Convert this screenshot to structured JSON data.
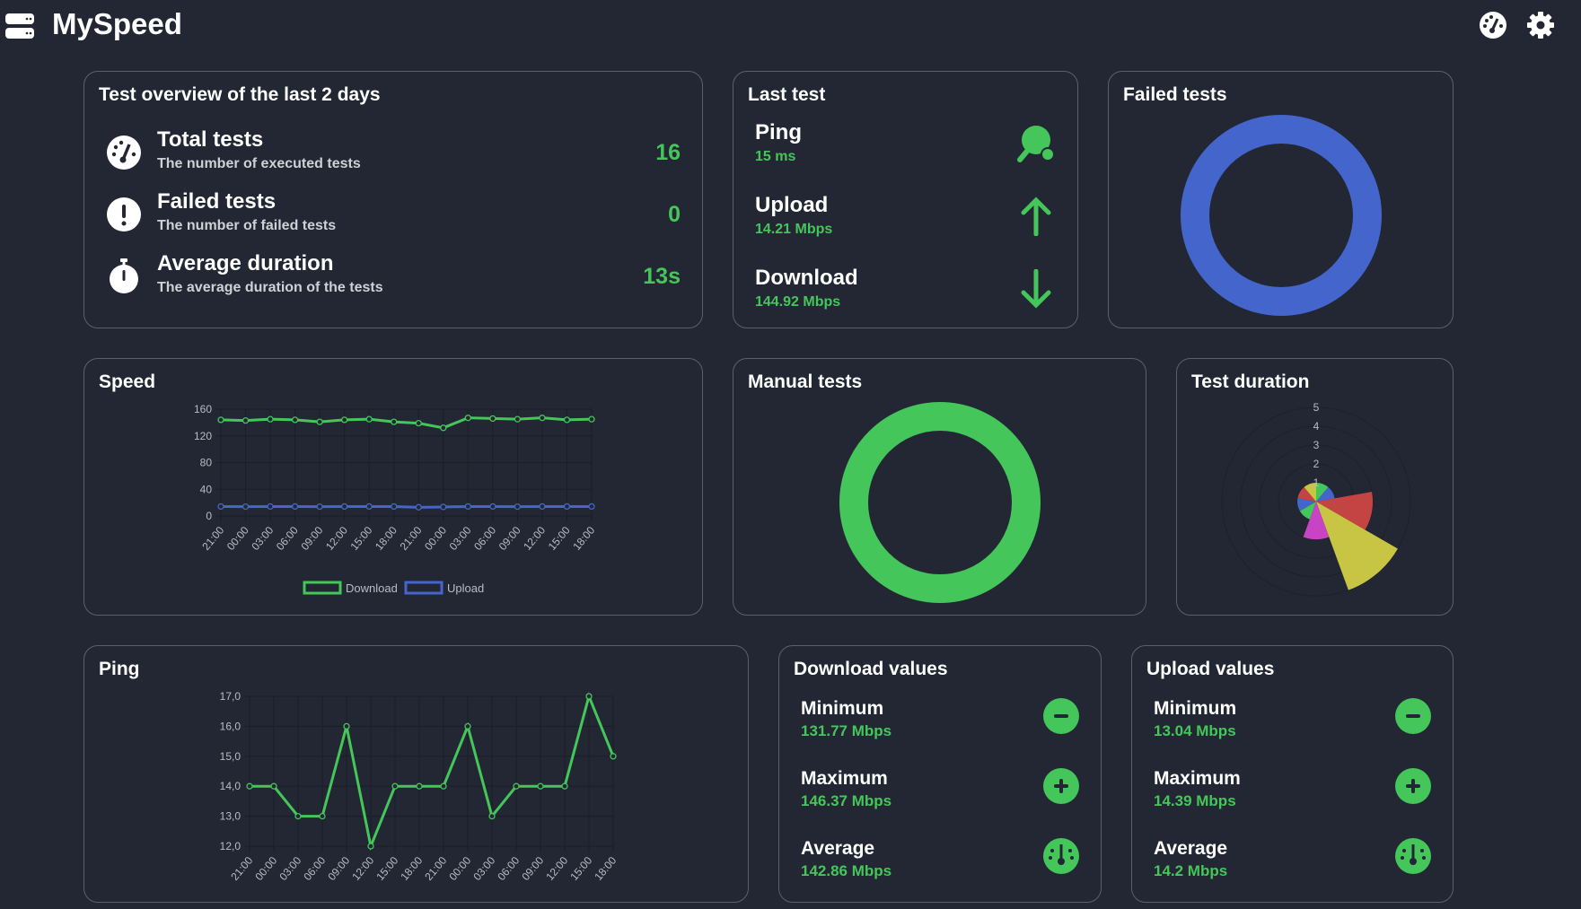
{
  "app": {
    "title": "MySpeed",
    "icons": [
      "server-icon",
      "gauge-icon",
      "gear-icon"
    ]
  },
  "overview": {
    "title": "Test overview of the last 2 days",
    "rows": [
      {
        "title": "Total tests",
        "subtitle": "The number of executed tests",
        "value": "16",
        "icon": "gauge-icon"
      },
      {
        "title": "Failed tests",
        "subtitle": "The number of failed tests",
        "value": "0",
        "icon": "exclamation-icon"
      },
      {
        "title": "Average duration",
        "subtitle": "The average duration of the tests",
        "value": "13s",
        "icon": "stopwatch-icon"
      }
    ]
  },
  "last_test": {
    "title": "Last test",
    "rows": [
      {
        "title": "Ping",
        "value": "15 ms",
        "icon": "ping-pong-icon"
      },
      {
        "title": "Upload",
        "value": "14.21 Mbps",
        "icon": "arrow-up-icon"
      },
      {
        "title": "Download",
        "value": "144.92 Mbps",
        "icon": "arrow-down-icon"
      }
    ]
  },
  "failed_tests": {
    "title": "Failed tests",
    "color": "#4466cc"
  },
  "manual_tests": {
    "title": "Manual tests",
    "color": "#45c65a"
  },
  "download_values": {
    "title": "Download values",
    "rows": [
      {
        "title": "Minimum",
        "value": "131.77 Mbps",
        "icon": "minus-icon"
      },
      {
        "title": "Maximum",
        "value": "146.37 Mbps",
        "icon": "plus-icon"
      },
      {
        "title": "Average",
        "value": "142.86 Mbps",
        "icon": "gauge-icon"
      }
    ]
  },
  "upload_values": {
    "title": "Upload values",
    "rows": [
      {
        "title": "Minimum",
        "value": "13.04 Mbps",
        "icon": "minus-icon"
      },
      {
        "title": "Maximum",
        "value": "14.39 Mbps",
        "icon": "plus-icon"
      },
      {
        "title": "Average",
        "value": "14.2 Mbps",
        "icon": "gauge-icon"
      }
    ]
  },
  "chart_data": [
    {
      "id": "speed",
      "title": "Speed",
      "type": "line",
      "x": [
        "21:00",
        "00:00",
        "03:00",
        "06:00",
        "09:00",
        "12:00",
        "15:00",
        "18:00",
        "21:00",
        "00:00",
        "03:00",
        "06:00",
        "09:00",
        "12:00",
        "15:00",
        "18:00"
      ],
      "ylim": [
        0,
        160
      ],
      "yticks": [
        "0",
        "40",
        "80",
        "120",
        "160"
      ],
      "grid": true,
      "legend": "bottom",
      "series": [
        {
          "name": "Download",
          "color": "#45c65a",
          "values": [
            144,
            143,
            145,
            144,
            141,
            144,
            145,
            141,
            139,
            132,
            147,
            146,
            145,
            147,
            144,
            145
          ]
        },
        {
          "name": "Upload",
          "color": "#4466cc",
          "values": [
            14.2,
            14,
            14.2,
            14.2,
            14,
            14.2,
            14.2,
            14.2,
            13,
            13.5,
            14.2,
            14.2,
            14,
            14.2,
            14.2,
            14.2
          ]
        }
      ]
    },
    {
      "id": "ping",
      "title": "Ping",
      "type": "line",
      "x": [
        "21:00",
        "00:00",
        "03:00",
        "06:00",
        "09:00",
        "12:00",
        "15:00",
        "18:00",
        "21:00",
        "00:00",
        "03:00",
        "06:00",
        "09:00",
        "12:00",
        "15:00",
        "18:00"
      ],
      "ylim": [
        12,
        17
      ],
      "yticks": [
        "12,0",
        "13,0",
        "14,0",
        "15,0",
        "16,0",
        "17,0"
      ],
      "grid": true,
      "series": [
        {
          "color": "#45c65a",
          "values": [
            14,
            14,
            13,
            13,
            16,
            12,
            14,
            14,
            14,
            16,
            13,
            14,
            14,
            14,
            17,
            15
          ]
        }
      ]
    },
    {
      "id": "duration",
      "title": "Test duration",
      "type": "polarArea",
      "rlim": [
        0,
        5
      ],
      "rticks": [
        "1",
        "2",
        "3",
        "4",
        "5"
      ],
      "values": [
        1,
        1,
        3,
        5,
        2,
        1,
        1,
        1,
        1
      ],
      "colors": [
        "#45c65a",
        "#4466cc",
        "#c44444",
        "#c8c444",
        "#c844c4",
        "#45c65a",
        "#4466cc",
        "#c44444",
        "#c8c444"
      ]
    }
  ]
}
